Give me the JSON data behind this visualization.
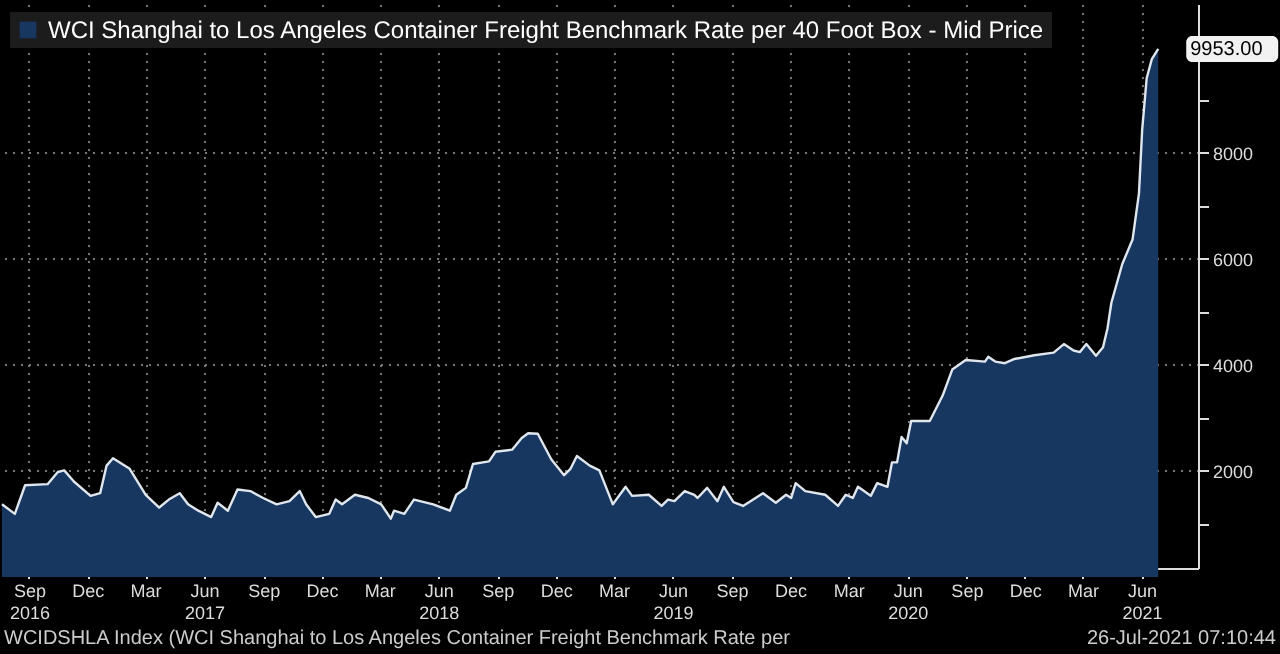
{
  "chart_data": {
    "type": "area",
    "x": [
      "2016-07-21",
      "2016-08-10",
      "2016-08-26",
      "2016-09-30",
      "2016-10-16",
      "2016-10-26",
      "2016-11-10",
      "2016-12-06",
      "2016-12-21",
      "2016-12-31",
      "2017-01-10",
      "2017-02-05",
      "2017-03-02",
      "2017-03-23",
      "2017-04-07",
      "2017-04-24",
      "2017-05-07",
      "2017-05-23",
      "2017-06-12",
      "2017-06-22",
      "2017-07-08",
      "2017-07-23",
      "2017-08-12",
      "2017-09-01",
      "2017-09-22",
      "2017-10-12",
      "2017-10-28",
      "2017-11-07",
      "2017-11-22",
      "2017-12-13",
      "2017-12-23",
      "2018-01-02",
      "2018-01-22",
      "2018-02-12",
      "2018-03-04",
      "2018-03-19",
      "2018-03-24",
      "2018-04-09",
      "2018-04-24",
      "2018-05-24",
      "2018-06-19",
      "2018-06-29",
      "2018-07-14",
      "2018-07-25",
      "2018-08-19",
      "2018-08-29",
      "2018-09-24",
      "2018-10-09",
      "2018-10-19",
      "2018-11-03",
      "2018-11-24",
      "2018-12-14",
      "2018-12-24",
      "2019-01-03",
      "2019-01-23",
      "2019-02-07",
      "2019-02-28",
      "2019-03-20",
      "2019-03-30",
      "2019-04-25",
      "2019-05-15",
      "2019-05-25",
      "2019-06-04",
      "2019-06-20",
      "2019-07-05",
      "2019-07-10",
      "2019-07-25",
      "2019-08-10",
      "2019-08-20",
      "2019-09-04",
      "2019-09-19",
      "2019-10-20",
      "2019-11-09",
      "2019-11-25",
      "2019-12-03",
      "2019-12-10",
      "2019-12-25",
      "2020-01-25",
      "2020-02-14",
      "2020-02-26",
      "2020-03-08",
      "2020-03-16",
      "2020-04-05",
      "2020-04-15",
      "2020-05-01",
      "2020-05-08",
      "2020-05-16",
      "2020-05-23",
      "2020-05-31",
      "2020-06-07",
      "2020-07-06",
      "2020-07-26",
      "2020-08-10",
      "2020-08-31",
      "2020-09-30",
      "2020-10-05",
      "2020-10-16",
      "2020-10-31",
      "2020-11-15",
      "2020-12-16",
      "2021-01-15",
      "2021-01-31",
      "2021-02-15",
      "2021-02-25",
      "2021-03-07",
      "2021-03-22",
      "2021-04-02",
      "2021-04-09",
      "2021-04-15",
      "2021-05-02",
      "2021-05-18",
      "2021-05-28",
      "2021-06-02",
      "2021-06-09",
      "2021-06-17",
      "2021-06-27"
    ],
    "series": [
      {
        "name": "WCI Shanghai to Los Angeles Container Freight Benchmark Rate per 40 Foot Box - Mid Price",
        "color": "#173760",
        "values": [
          1370,
          1190,
          1730,
          1750,
          1980,
          2010,
          1800,
          1530,
          1580,
          2100,
          2240,
          2040,
          1550,
          1310,
          1460,
          1580,
          1370,
          1250,
          1130,
          1400,
          1250,
          1650,
          1620,
          1490,
          1370,
          1430,
          1620,
          1370,
          1130,
          1190,
          1460,
          1370,
          1550,
          1490,
          1370,
          1100,
          1250,
          1190,
          1460,
          1370,
          1250,
          1550,
          1680,
          2130,
          2180,
          2360,
          2400,
          2620,
          2710,
          2700,
          2220,
          1920,
          2040,
          2280,
          2100,
          2010,
          1370,
          1700,
          1530,
          1550,
          1340,
          1460,
          1430,
          1620,
          1550,
          1490,
          1680,
          1430,
          1700,
          1410,
          1340,
          1580,
          1400,
          1550,
          1490,
          1770,
          1620,
          1550,
          1340,
          1550,
          1490,
          1700,
          1530,
          1770,
          1700,
          2160,
          2160,
          2640,
          2520,
          2940,
          2940,
          3420,
          3910,
          4090,
          4060,
          4150,
          4060,
          4030,
          4110,
          4180,
          4230,
          4390,
          4270,
          4240,
          4390,
          4170,
          4330,
          4690,
          5170,
          5900,
          6360,
          7230,
          8430,
          9400,
          9760,
          9953
        ]
      }
    ],
    "xlim": [
      "2016-07-21",
      "2021-08-28"
    ],
    "xticks": [
      {
        "value": "2016-09-01",
        "label": "Sep\n2016"
      },
      {
        "value": "2016-12-01",
        "label": "Dec"
      },
      {
        "value": "2017-03-01",
        "label": "Mar"
      },
      {
        "value": "2017-06-01",
        "label": "Jun\n2017"
      },
      {
        "value": "2017-09-01",
        "label": "Sep"
      },
      {
        "value": "2017-12-01",
        "label": "Dec"
      },
      {
        "value": "2018-03-01",
        "label": "Mar"
      },
      {
        "value": "2018-06-01",
        "label": "Jun\n2018"
      },
      {
        "value": "2018-09-01",
        "label": "Sep"
      },
      {
        "value": "2018-12-01",
        "label": "Dec"
      },
      {
        "value": "2019-03-01",
        "label": "Mar"
      },
      {
        "value": "2019-06-01",
        "label": "Jun\n2019"
      },
      {
        "value": "2019-09-01",
        "label": "Sep"
      },
      {
        "value": "2019-12-01",
        "label": "Dec"
      },
      {
        "value": "2020-03-01",
        "label": "Mar"
      },
      {
        "value": "2020-06-01",
        "label": "Jun\n2020"
      },
      {
        "value": "2020-09-01",
        "label": "Sep"
      },
      {
        "value": "2020-12-01",
        "label": "Dec"
      },
      {
        "value": "2021-03-01",
        "label": "Mar"
      },
      {
        "value": "2021-06-01",
        "label": "Jun\n2021"
      }
    ],
    "ylim": [
      170,
      10800
    ],
    "yticks": [
      {
        "value": 1000,
        "label": null
      },
      2000,
      {
        "value": 3000,
        "label": null
      },
      4000,
      {
        "value": 5000,
        "label": null
      },
      6000,
      {
        "value": 7000,
        "label": null
      },
      8000,
      {
        "value": 9000,
        "label": null
      }
    ],
    "grid": true,
    "legend": "top left",
    "annotations": [
      {
        "text": "9953.00",
        "x": "2021-06-27",
        "y": 9953
      },
      "WCIDSHLA Index (WCI Shanghai to Los Angeles Container Freight Benchmark Rate per",
      "26-Jul-2021 07:10:44"
    ]
  }
}
